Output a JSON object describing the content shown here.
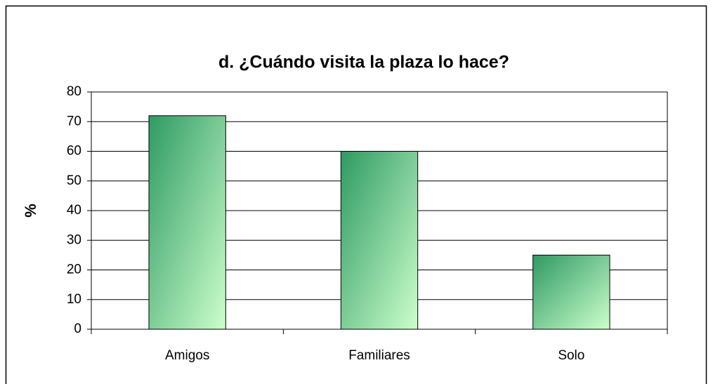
{
  "chart_data": {
    "type": "bar",
    "title": "d. ¿Cuándo visita la plaza lo hace?",
    "y_label": "%",
    "categories": [
      "Amigos",
      "Familiares",
      "Solo"
    ],
    "values": [
      72,
      60,
      25
    ],
    "gradient": [
      "#2f9a62",
      "#ccffcc"
    ],
    "ylim": [
      0,
      80
    ],
    "yticks": [
      0,
      10,
      20,
      30,
      40,
      50,
      60,
      70,
      80
    ],
    "grid": true
  }
}
